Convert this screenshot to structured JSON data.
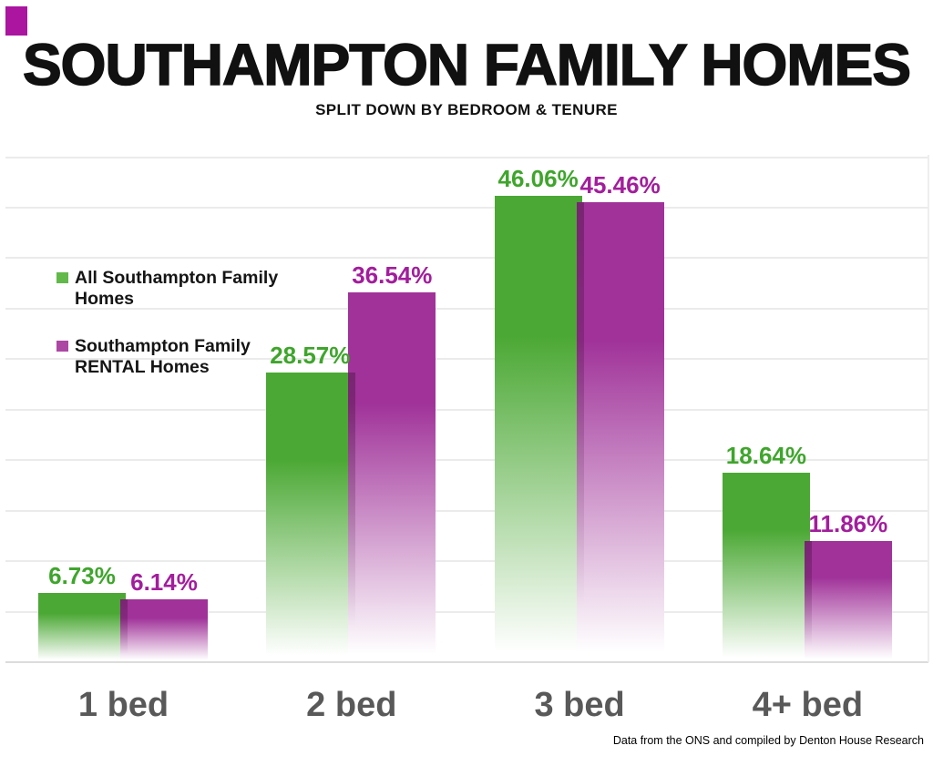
{
  "page": {
    "background": "#ffffff"
  },
  "decor": {
    "corner_accent_color": "#AB15A0"
  },
  "header": {
    "title": "SOUTHAMPTON FAMILY HOMES",
    "subtitle": "SPLIT DOWN BY BEDROOM & TENURE"
  },
  "legend": {
    "entries": [
      {
        "label": "All Southampton Family Homes",
        "color": "#62B849"
      },
      {
        "label": "Southampton Family RENTAL Homes",
        "color": "#AD47A4"
      }
    ]
  },
  "footer": {
    "credit": "Data from the ONS and compiled by Denton House Research"
  },
  "chart_data": {
    "type": "bar",
    "title": "SOUTHAMPTON FAMILY HOMES",
    "subtitle": "SPLIT DOWN BY BEDROOM & TENURE",
    "categories": [
      "1 bed",
      "2 bed",
      "3 bed",
      "4+ bed"
    ],
    "series": [
      {
        "name": "All Southampton Family Homes",
        "color": "#4BA834",
        "label_color": "#3FA52C",
        "legend_color": "#62B849",
        "values": [
          6.73,
          28.57,
          46.06,
          18.64
        ],
        "labels": [
          "6.73%",
          "28.57%",
          "46.06%",
          "18.64%"
        ]
      },
      {
        "name": "Southampton Family RENTAL Homes",
        "color": "#A03299",
        "label_color": "#A21E9C",
        "legend_color": "#AD47A4",
        "values": [
          6.14,
          36.54,
          45.46,
          11.86
        ],
        "labels": [
          "6.14%",
          "36.54%",
          "45.46%",
          "11.86%"
        ]
      }
    ],
    "xlabel": "",
    "ylabel": "",
    "ylim": [
      0,
      50
    ],
    "gridline_step": 5,
    "grid": "horizontal",
    "legend_position": "middle-left",
    "value_label_format": "0.00%",
    "footer": "Data from the ONS and compiled by Denton House Research"
  }
}
